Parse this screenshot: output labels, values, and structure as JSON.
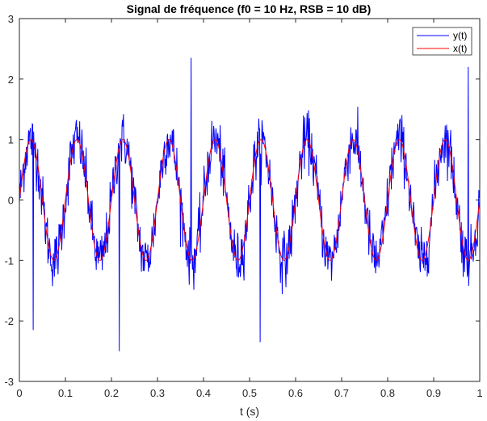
{
  "chart_data": {
    "type": "line",
    "title": "Signal de fréquence (f0 = 10 Hz, RSB = 10 dB)",
    "xlabel": "t (s)",
    "ylabel": "",
    "xlim": [
      0,
      1
    ],
    "ylim": [
      -3,
      3
    ],
    "xticks": [
      0,
      0.1,
      0.2,
      0.3,
      0.4,
      0.5,
      0.6,
      0.7,
      0.8,
      0.9,
      1
    ],
    "xtick_labels": [
      "0",
      "0.1",
      "0.2",
      "0.3",
      "0.4",
      "0.5",
      "0.6",
      "0.7",
      "0.8",
      "0.9",
      "1"
    ],
    "yticks": [
      -3,
      -2,
      -1,
      0,
      1,
      2,
      3
    ],
    "ytick_labels": [
      "-3",
      "-2",
      "-1",
      "0",
      "1",
      "2",
      "3"
    ],
    "grid": false,
    "legend_position": "top-right",
    "series": [
      {
        "name": "y(t)",
        "color": "#0000ff",
        "description_kind": "noisy",
        "frequency_hz": 10,
        "snr_db": 10,
        "amplitude": 1,
        "phase_offset": "sin",
        "notable_points": [
          {
            "x": 0.217,
            "y": -2.5
          },
          {
            "x": 0.373,
            "y": 2.35
          },
          {
            "x": 0.523,
            "y": -2.35
          },
          {
            "x": 0.03,
            "y": -2.15
          },
          {
            "x": 0.975,
            "y": 2.2
          }
        ]
      },
      {
        "name": "x(t)",
        "color": "#ff0000",
        "description_kind": "clean",
        "frequency_hz": 10,
        "amplitude": 1
      }
    ]
  }
}
